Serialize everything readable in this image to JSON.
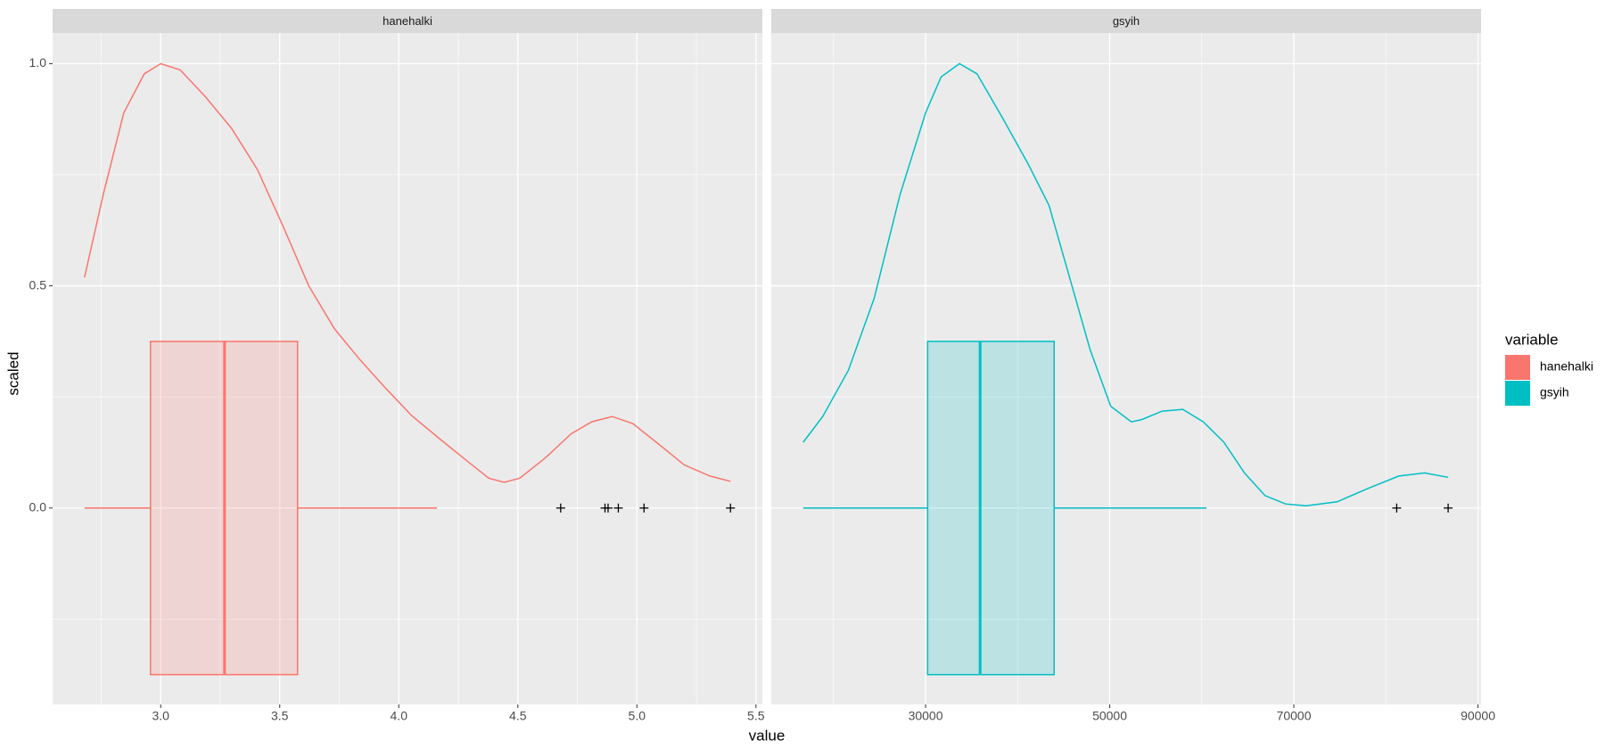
{
  "chart_data": {
    "type": "density_box",
    "x_label": "value",
    "y_label": "scaled",
    "legend_title": "variable",
    "ylim": [
      -0.442,
      1.069
    ],
    "yticks": [
      {
        "value": 0,
        "label": "0.0"
      },
      0.5,
      {
        "value": 1,
        "label": "1.0"
      }
    ],
    "box_width": 0.75,
    "box_alpha": 0.2,
    "grid": true,
    "facets": [
      {
        "name": "hanehalki",
        "color": "#F8766D",
        "xlim": [
          2.546,
          5.527
        ],
        "xticks": [
          {
            "value": 3,
            "label": "3.0"
          },
          3.5,
          {
            "value": 4,
            "label": "4.0"
          },
          4.5,
          {
            "value": 5,
            "label": "5.0"
          },
          5.5
        ],
        "density": {
          "x": [
            2.68,
            2.758,
            2.845,
            2.931,
            3.0,
            3.082,
            3.19,
            3.298,
            3.406,
            3.514,
            3.622,
            3.73,
            3.838,
            3.946,
            4.054,
            4.162,
            4.27,
            4.378,
            4.443,
            4.508,
            4.616,
            4.724,
            4.81,
            4.896,
            4.983,
            5.091,
            5.199,
            5.307,
            5.393
          ],
          "values": [
            0.519,
            0.704,
            0.889,
            0.977,
            1.0,
            0.986,
            0.924,
            0.854,
            0.762,
            0.634,
            0.5,
            0.403,
            0.333,
            0.269,
            0.208,
            0.16,
            0.113,
            0.067,
            0.058,
            0.067,
            0.113,
            0.167,
            0.194,
            0.206,
            0.19,
            0.144,
            0.097,
            0.072,
            0.06
          ]
        },
        "box": {
          "lower_whisker": 2.68,
          "q1": 2.957,
          "median": 3.268,
          "q3": 3.575,
          "upper_whisker": 4.16
        },
        "outliers": [
          4.68,
          4.866,
          4.879,
          4.922,
          5.03,
          5.393
        ]
      },
      {
        "name": "gsyih",
        "color": "#00BFC4",
        "xlim": [
          13240,
          90335
        ],
        "xticks": [
          30000,
          50000,
          70000,
          90000
        ],
        "density": {
          "x": [
            16704,
            18827,
            21620,
            24413,
            27207,
            30000,
            31676,
            33687,
            35587,
            38380,
            41173,
            43408,
            45642,
            47877,
            50112,
            52346,
            53464,
            55698,
            57933,
            60168,
            62402,
            64637,
            66872,
            69106,
            71341,
            74693,
            78045,
            81397,
            84190,
            86760
          ],
          "values": [
            0.148,
            0.206,
            0.31,
            0.472,
            0.704,
            0.889,
            0.97,
            1.0,
            0.977,
            0.877,
            0.773,
            0.681,
            0.519,
            0.356,
            0.229,
            0.194,
            0.199,
            0.218,
            0.222,
            0.194,
            0.148,
            0.079,
            0.028,
            0.009,
            0.005,
            0.014,
            0.044,
            0.072,
            0.079,
            0.069
          ]
        },
        "box": {
          "lower_whisker": 16704,
          "q1": 30223,
          "median": 35922,
          "q3": 43966,
          "upper_whisker": 60503
        },
        "outliers": [
          81173,
          86760
        ]
      }
    ]
  }
}
